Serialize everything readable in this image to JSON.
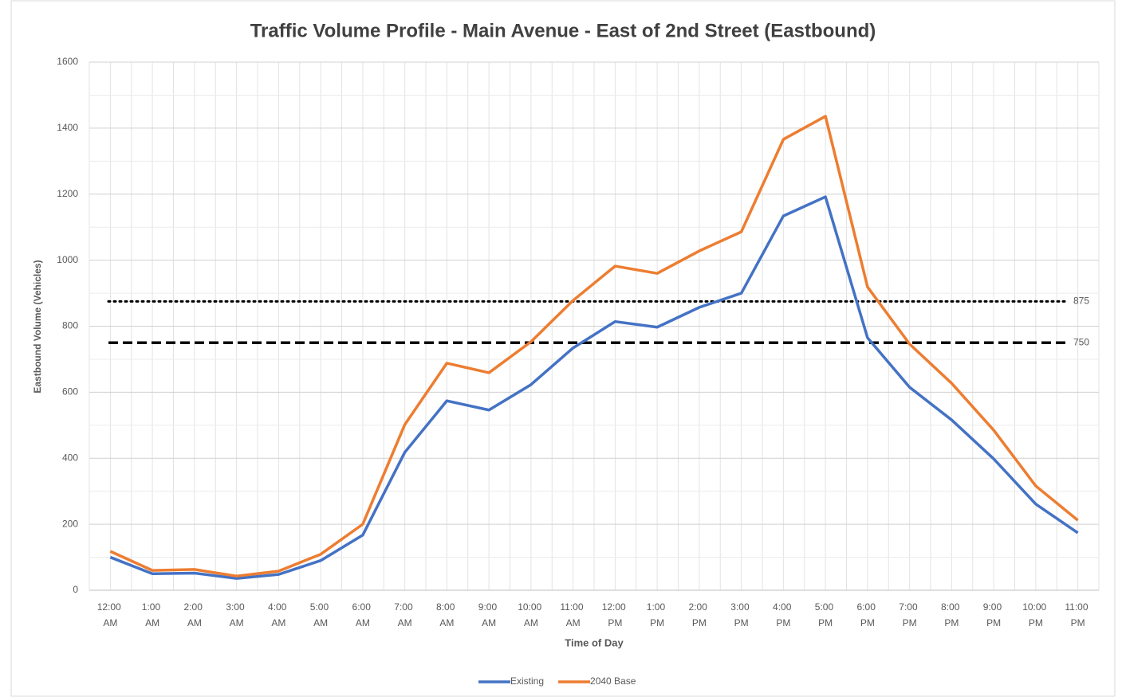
{
  "chart_data": {
    "type": "line",
    "title": "Traffic Volume Profile - Main Avenue - East of 2nd Street (Eastbound)",
    "x_label": "Time of Day",
    "y_label": "Eastbound Volume (Vehicles)",
    "categories": [
      "12:00 AM",
      "1:00 AM",
      "2:00 AM",
      "3:00 AM",
      "4:00 AM",
      "5:00 AM",
      "6:00 AM",
      "7:00 AM",
      "8:00 AM",
      "9:00 AM",
      "10:00 AM",
      "11:00 AM",
      "12:00 PM",
      "1:00 PM",
      "2:00 PM",
      "3:00 PM",
      "4:00 PM",
      "5:00 PM",
      "6:00 PM",
      "7:00 PM",
      "8:00 PM",
      "9:00 PM",
      "10:00 PM",
      "11:00 PM"
    ],
    "series": [
      {
        "name": "Existing",
        "color": "#4472c4",
        "values": [
          100,
          50,
          52,
          36,
          48,
          90,
          167,
          418,
          574,
          546,
          623,
          734,
          814,
          797,
          857,
          900,
          1134,
          1192,
          765,
          615,
          516,
          398,
          261,
          174
        ]
      },
      {
        "name": "2040 Base",
        "color": "#ed7d31",
        "values": [
          118,
          60,
          63,
          43,
          58,
          109,
          200,
          502,
          688,
          659,
          753,
          878,
          982,
          960,
          1028,
          1086,
          1366,
          1436,
          919,
          746,
          627,
          485,
          316,
          212
        ]
      }
    ],
    "reference_lines": [
      {
        "value": 875,
        "style": "dotted"
      },
      {
        "value": 750,
        "style": "dashed"
      }
    ],
    "ylim": [
      0,
      1600
    ],
    "yticks": [
      0,
      200,
      400,
      600,
      800,
      1000,
      1200,
      1400,
      1600
    ],
    "grid": true,
    "legend": "bottom"
  }
}
